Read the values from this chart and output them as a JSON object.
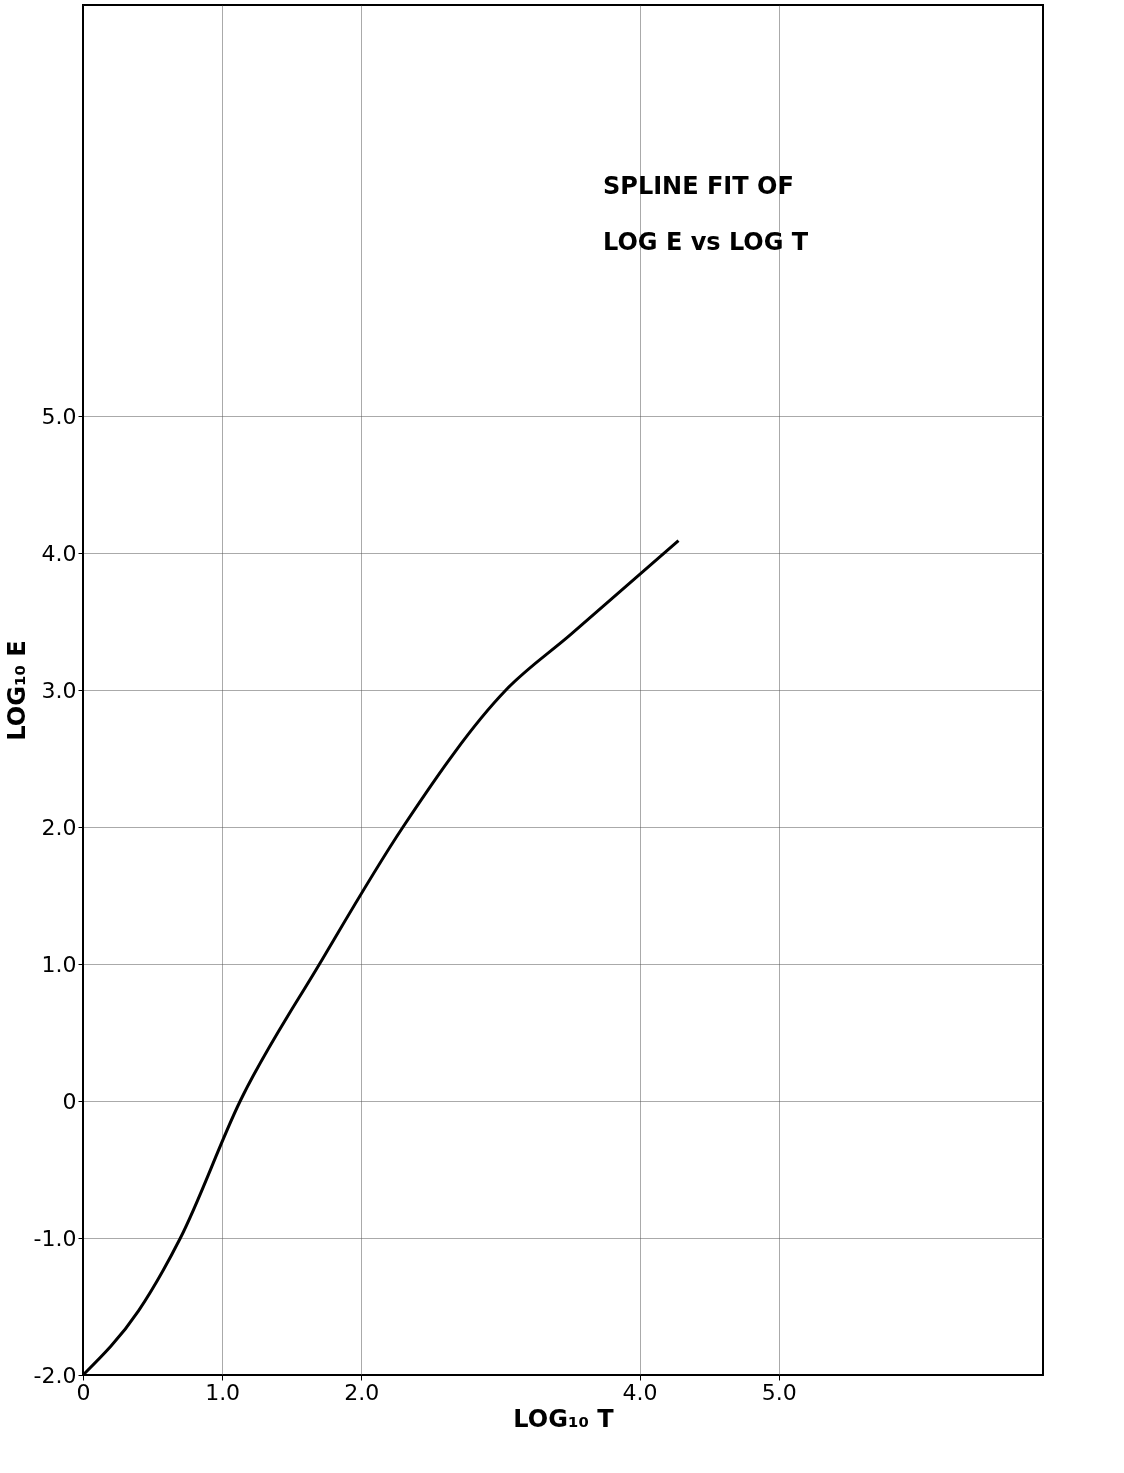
{
  "chart_data": {
    "type": "line",
    "xlabel": "LOG₁₀ T",
    "ylabel": "LOG₁₀ E",
    "annotations": [
      "SPLINE FIT OF LOG E vs LOG T"
    ],
    "xlim": [
      0,
      6.9
    ],
    "ylim": [
      -2.0,
      8.0
    ],
    "xticks": [
      0,
      {
        "value": 1,
        "label": "1.0"
      },
      {
        "value": 2,
        "label": "2.0"
      },
      {
        "value": 4,
        "label": "4.0"
      },
      {
        "value": 5,
        "label": "5.0"
      }
    ],
    "yticks": [
      {
        "value": -2,
        "label": "-2.0"
      },
      {
        "value": -1,
        "label": "-1.0"
      },
      0,
      {
        "value": 1,
        "label": "1.0"
      },
      {
        "value": 2,
        "label": "2.0"
      },
      {
        "value": 3,
        "label": "3.0"
      },
      {
        "value": 4,
        "label": "4.0"
      },
      {
        "value": 5,
        "label": "5.0"
      }
    ],
    "grid": true,
    "marker": "none",
    "line_style": "solid",
    "series": [
      {
        "color": "#000000",
        "x": [
          0,
          0.4,
          0.7,
          1.13,
          1.7,
          2.3,
          3.04,
          3.5,
          4.28
        ],
        "values": [
          -2.0,
          -1.53,
          -1.0,
          0.0,
          1.0,
          2.0,
          3.0,
          3.4,
          4.09
        ]
      }
    ]
  }
}
